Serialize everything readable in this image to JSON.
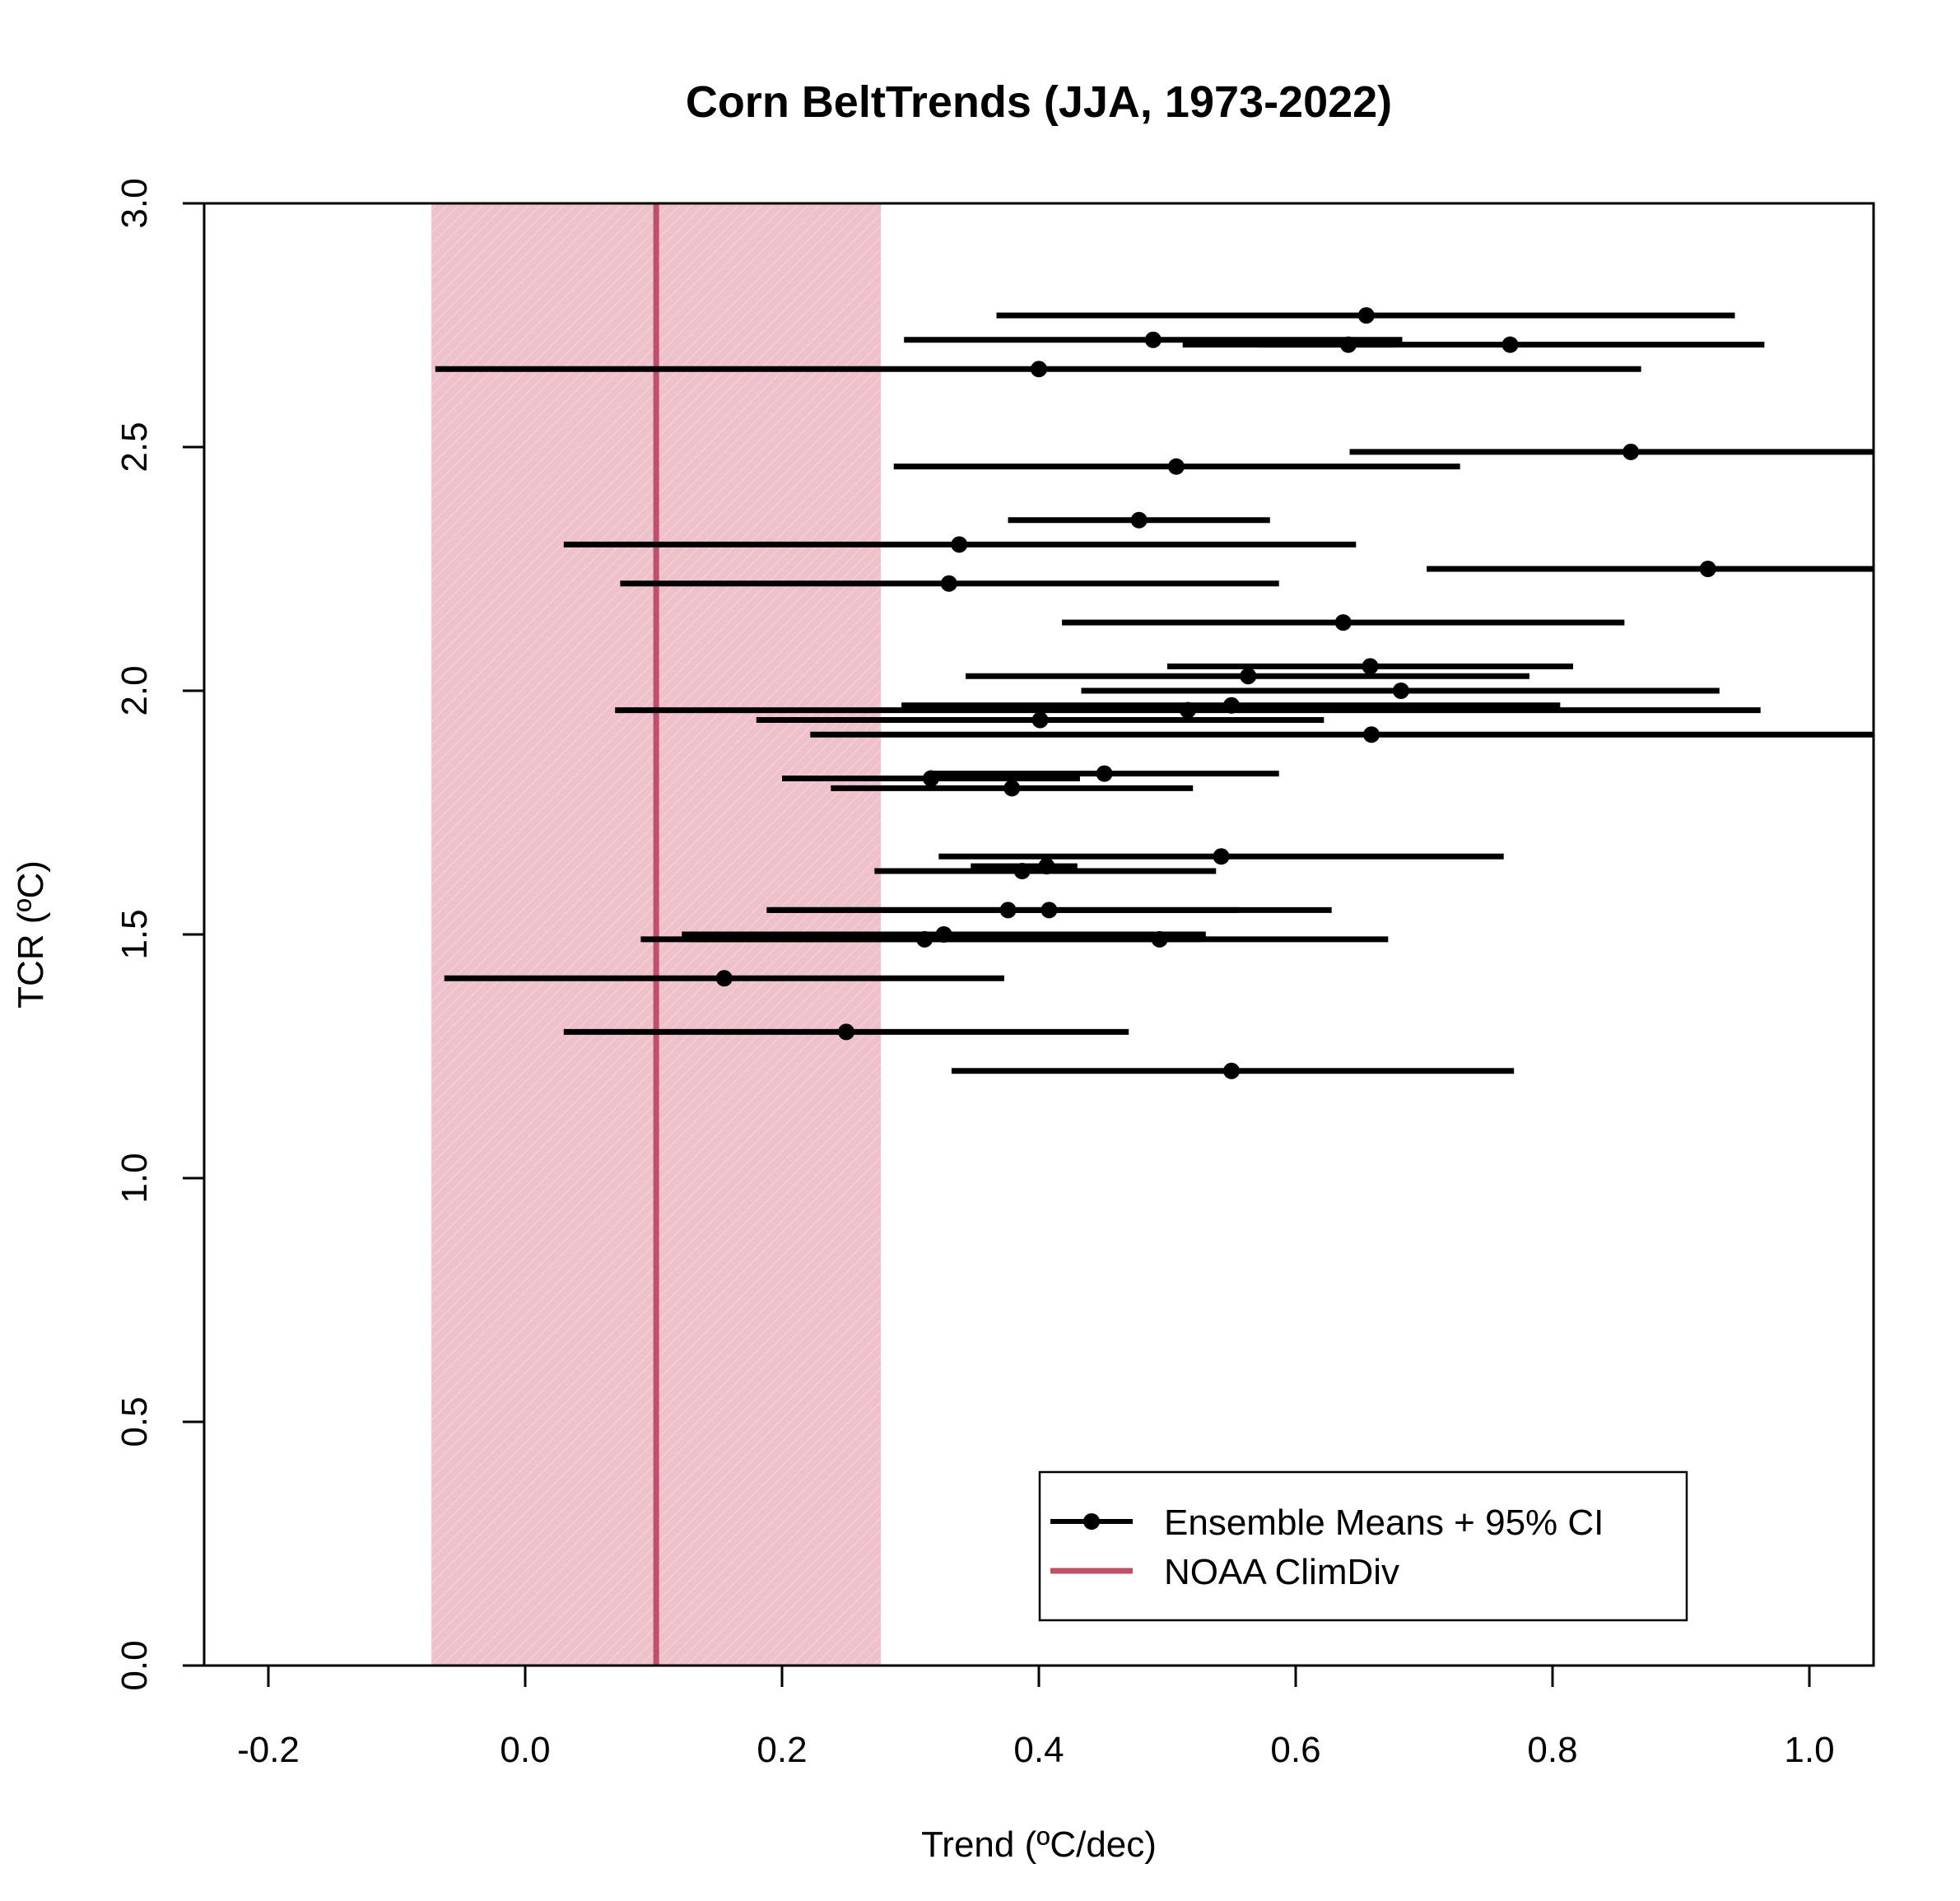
{
  "chart_data": {
    "type": "scatter",
    "subtype": "point-with-horizontal-error-bars",
    "title": "Corn BeltTrends (JJA, 1973-2022)",
    "xlabel": "Trend (ºC/dec)",
    "ylabel": "TCR (ºC)",
    "xlim": [
      -0.25,
      1.05
    ],
    "ylim": [
      0,
      3
    ],
    "xticks": [
      -0.2,
      0.0,
      0.2,
      0.4,
      0.6,
      0.8,
      1.0
    ],
    "xtick_labels": [
      "-0.2",
      "0.0",
      "0.2",
      "0.4",
      "0.6",
      "0.8",
      "1.0"
    ],
    "yticks": [
      0.0,
      0.5,
      1.0,
      1.5,
      2.0,
      2.5,
      3.0
    ],
    "ytick_labels": [
      "0.0",
      "0.5",
      "1.0",
      "1.5",
      "2.0",
      "2.5",
      "3.0"
    ],
    "observed": {
      "name": "NOAA ClimDiv",
      "trend": 0.102,
      "ci_low": -0.073,
      "ci_high": 0.277,
      "line_color": "#c0506a",
      "band_color": "#eec1cb"
    },
    "ensemble_color": "#000000",
    "legend": {
      "position": "bottom-right",
      "entries": [
        {
          "label": "Ensemble Means + 95% CI",
          "kind": "point-line"
        },
        {
          "label": "NOAA ClimDiv",
          "kind": "line"
        }
      ]
    },
    "series": [
      {
        "name": "Ensemble Means + 95% CI",
        "points": [
          {
            "tcr": 2.77,
            "trend": 0.655,
            "lo": 0.367,
            "hi": 0.942
          },
          {
            "tcr": 2.72,
            "trend": 0.489,
            "lo": 0.295,
            "hi": 0.683
          },
          {
            "tcr": 2.71,
            "trend": 0.641,
            "lo": 0.512,
            "hi": 0.678
          },
          {
            "tcr": 2.71,
            "trend": 0.767,
            "lo": 0.57,
            "hi": 0.965
          },
          {
            "tcr": 2.66,
            "trend": 0.4,
            "lo": -0.07,
            "hi": 0.869
          },
          {
            "tcr": 2.49,
            "trend": 0.861,
            "lo": 0.642,
            "hi": 1.08
          },
          {
            "tcr": 2.46,
            "trend": 0.507,
            "lo": 0.287,
            "hi": 0.728
          },
          {
            "tcr": 2.35,
            "trend": 0.478,
            "lo": 0.376,
            "hi": 0.58
          },
          {
            "tcr": 2.3,
            "trend": 0.338,
            "lo": 0.03,
            "hi": 0.647
          },
          {
            "tcr": 2.25,
            "trend": 0.921,
            "lo": 0.702,
            "hi": 1.14
          },
          {
            "tcr": 2.22,
            "trend": 0.33,
            "lo": 0.074,
            "hi": 0.587
          },
          {
            "tcr": 2.14,
            "trend": 0.637,
            "lo": 0.418,
            "hi": 0.856
          },
          {
            "tcr": 2.05,
            "trend": 0.658,
            "lo": 0.5,
            "hi": 0.816
          },
          {
            "tcr": 2.03,
            "trend": 0.563,
            "lo": 0.343,
            "hi": 0.782
          },
          {
            "tcr": 2.0,
            "trend": 0.682,
            "lo": 0.433,
            "hi": 0.93
          },
          {
            "tcr": 1.97,
            "trend": 0.55,
            "lo": 0.293,
            "hi": 0.806
          },
          {
            "tcr": 1.96,
            "trend": 0.516,
            "lo": 0.07,
            "hi": 0.962
          },
          {
            "tcr": 1.94,
            "trend": 0.401,
            "lo": 0.18,
            "hi": 0.622
          },
          {
            "tcr": 1.91,
            "trend": 0.659,
            "lo": 0.222,
            "hi": 1.096
          },
          {
            "tcr": 1.83,
            "trend": 0.451,
            "lo": 0.315,
            "hi": 0.587
          },
          {
            "tcr": 1.82,
            "trend": 0.316,
            "lo": 0.2,
            "hi": 0.432
          },
          {
            "tcr": 1.8,
            "trend": 0.379,
            "lo": 0.238,
            "hi": 0.52
          },
          {
            "tcr": 1.66,
            "trend": 0.542,
            "lo": 0.322,
            "hi": 0.762
          },
          {
            "tcr": 1.64,
            "trend": 0.406,
            "lo": 0.347,
            "hi": 0.43
          },
          {
            "tcr": 1.63,
            "trend": 0.387,
            "lo": 0.272,
            "hi": 0.538
          },
          {
            "tcr": 1.55,
            "trend": 0.376,
            "lo": 0.19,
            "hi": 0.556
          },
          {
            "tcr": 1.55,
            "trend": 0.408,
            "lo": 0.188,
            "hi": 0.628
          },
          {
            "tcr": 1.5,
            "trend": 0.326,
            "lo": 0.122,
            "hi": 0.53
          },
          {
            "tcr": 1.49,
            "trend": 0.311,
            "lo": 0.128,
            "hi": 0.526
          },
          {
            "tcr": 1.49,
            "trend": 0.494,
            "lo": 0.09,
            "hi": 0.672
          },
          {
            "tcr": 1.41,
            "trend": 0.155,
            "lo": -0.063,
            "hi": 0.373
          },
          {
            "tcr": 1.3,
            "trend": 0.25,
            "lo": 0.03,
            "hi": 0.47
          },
          {
            "tcr": 1.22,
            "trend": 0.55,
            "lo": 0.332,
            "hi": 0.77
          }
        ]
      }
    ]
  }
}
